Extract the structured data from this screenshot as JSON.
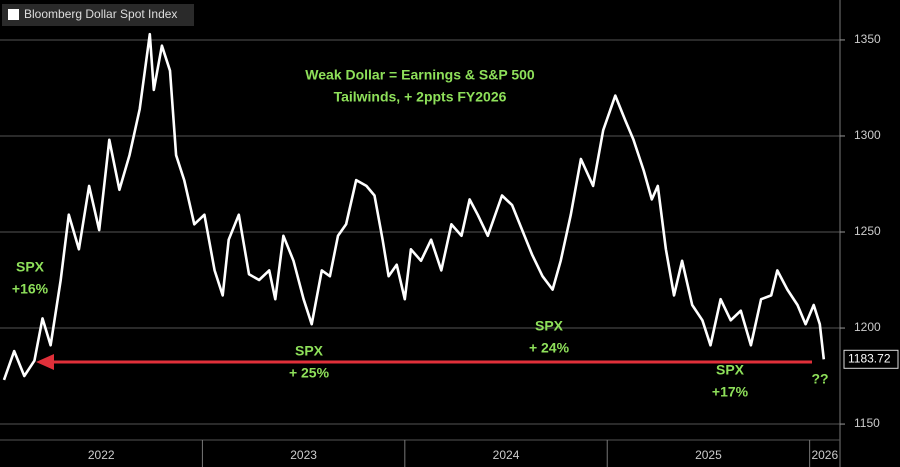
{
  "chart_data": {
    "type": "line",
    "series": [
      {
        "name": "Bloomberg Dollar Spot Index",
        "color": "#ffffff",
        "x": [
          2022.02,
          2022.07,
          2022.12,
          2022.17,
          2022.21,
          2022.25,
          2022.3,
          2022.34,
          2022.39,
          2022.44,
          2022.49,
          2022.54,
          2022.59,
          2022.64,
          2022.69,
          2022.74,
          2022.76,
          2022.8,
          2022.84,
          2022.87,
          2022.91,
          2022.96,
          2023.01,
          2023.06,
          2023.1,
          2023.13,
          2023.18,
          2023.23,
          2023.28,
          2023.33,
          2023.36,
          2023.4,
          2023.45,
          2023.5,
          2023.54,
          2023.59,
          2023.63,
          2023.67,
          2023.71,
          2023.76,
          2023.81,
          2023.85,
          2023.89,
          2023.92,
          2023.96,
          2024.0,
          2024.03,
          2024.08,
          2024.13,
          2024.18,
          2024.23,
          2024.28,
          2024.32,
          2024.36,
          2024.41,
          2024.48,
          2024.53,
          2024.58,
          2024.63,
          2024.68,
          2024.73,
          2024.77,
          2024.82,
          2024.87,
          2024.93,
          2024.98,
          2025.04,
          2025.09,
          2025.13,
          2025.18,
          2025.22,
          2025.25,
          2025.29,
          2025.33,
          2025.37,
          2025.42,
          2025.47,
          2025.51,
          2025.56,
          2025.61,
          2025.66,
          2025.71,
          2025.76,
          2025.81,
          2025.84,
          2025.89,
          2025.94,
          2025.98,
          2026.02,
          2026.05,
          2026.07
        ],
        "values": [
          1173,
          1188,
          1175,
          1183,
          1205,
          1191,
          1225,
          1259,
          1241,
          1274,
          1251,
          1298,
          1272,
          1290,
          1314,
          1353,
          1324,
          1347,
          1334,
          1290,
          1277,
          1254,
          1259,
          1230,
          1217,
          1246,
          1259,
          1228,
          1225,
          1230,
          1215,
          1248,
          1235,
          1215,
          1202,
          1230,
          1227,
          1248,
          1254,
          1277,
          1274,
          1269,
          1246,
          1227,
          1233,
          1215,
          1241,
          1235,
          1246,
          1230,
          1254,
          1248,
          1267,
          1259,
          1248,
          1269,
          1264,
          1251,
          1238,
          1227,
          1220,
          1235,
          1259,
          1288,
          1274,
          1303,
          1321,
          1308,
          1298,
          1282,
          1267,
          1274,
          1241,
          1217,
          1235,
          1212,
          1204,
          1191,
          1215,
          1204,
          1209,
          1191,
          1215,
          1217,
          1230,
          1220,
          1212,
          1202,
          1212,
          1202,
          1183.72
        ]
      }
    ],
    "xlim": [
      2022,
      2026.15
    ],
    "xticks": [
      2022,
      2023,
      2024,
      2025,
      2026
    ],
    "ylim": [
      1141.7,
      1370.8
    ],
    "yticks": [
      1150,
      1200,
      1250,
      1300,
      1350
    ],
    "grid": true,
    "annotations": [
      {
        "lines": [
          "Weak Dollar = Earnings & S&P 500",
          "Tailwinds, + 2ppts FY2026"
        ],
        "color": "#8ee05a"
      },
      {
        "lines": [
          "SPX",
          "+16%"
        ],
        "color": "#8ee05a"
      },
      {
        "lines": [
          "SPX",
          "+ 25%"
        ],
        "color": "#8ee05a"
      },
      {
        "lines": [
          "SPX",
          "+ 24%"
        ],
        "color": "#8ee05a"
      },
      {
        "lines": [
          "SPX",
          "+17%"
        ],
        "color": "#8ee05a"
      },
      {
        "lines": [
          "??"
        ],
        "color": "#8ee05a"
      }
    ]
  }
}
